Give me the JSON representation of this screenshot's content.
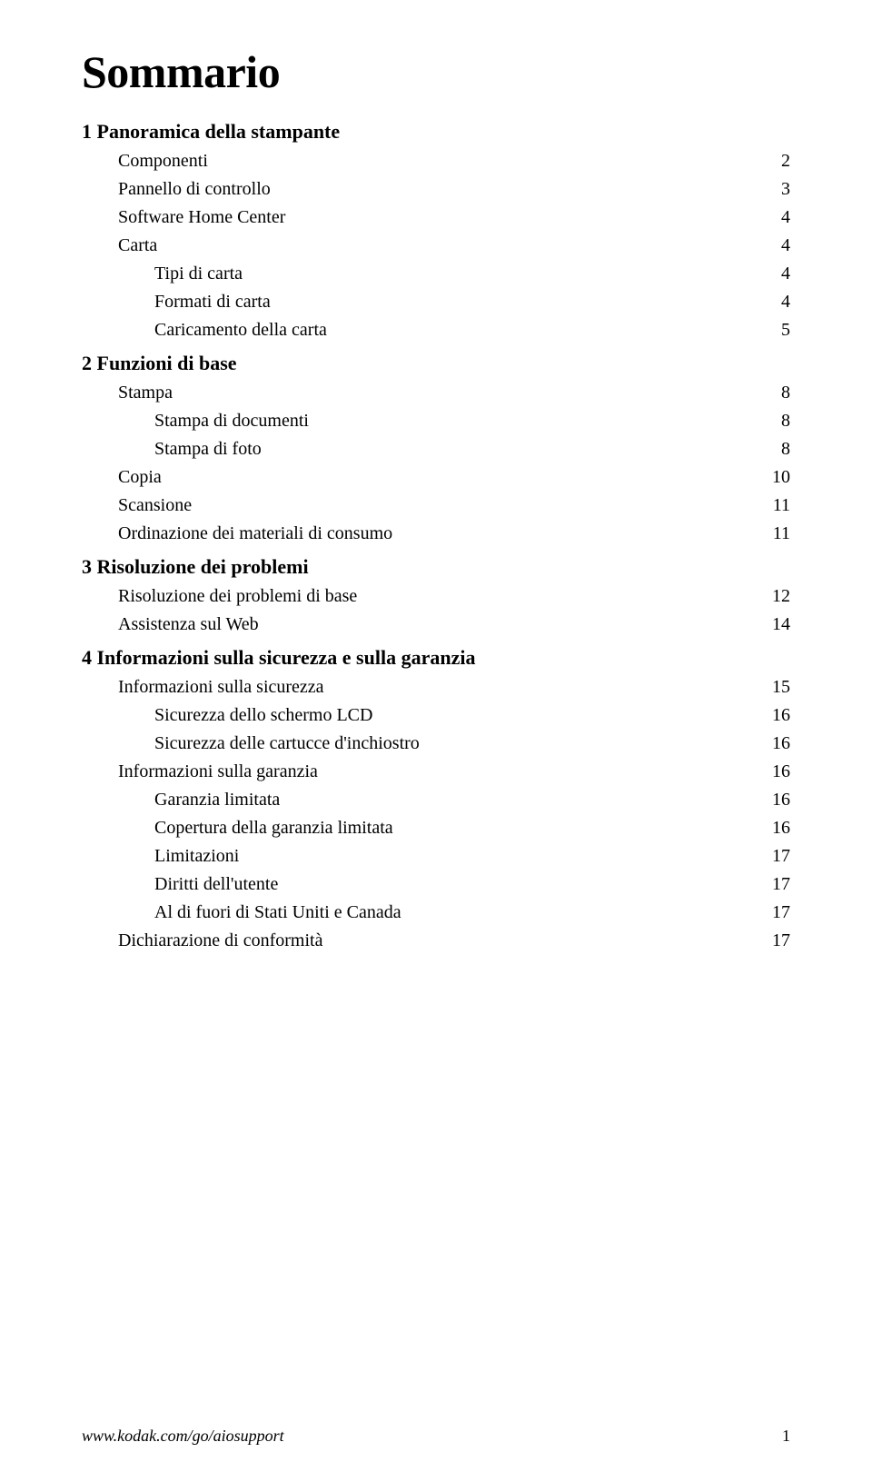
{
  "title": "Sommario",
  "sections": [
    {
      "heading": "1  Panoramica della stampante",
      "entries": [
        {
          "label": "Componenti",
          "page": "2",
          "indent": 1
        },
        {
          "label": "Pannello di controllo",
          "page": "3",
          "indent": 1
        },
        {
          "label": "Software Home Center",
          "page": "4",
          "indent": 1
        },
        {
          "label": "Carta",
          "page": "4",
          "indent": 1
        },
        {
          "label": "Tipi di carta",
          "page": "4",
          "indent": 2
        },
        {
          "label": "Formati di carta",
          "page": "4",
          "indent": 2
        },
        {
          "label": "Caricamento della carta",
          "page": "5",
          "indent": 2
        }
      ]
    },
    {
      "heading": "2  Funzioni di base",
      "entries": [
        {
          "label": "Stampa",
          "page": "8",
          "indent": 1
        },
        {
          "label": "Stampa di documenti",
          "page": "8",
          "indent": 2
        },
        {
          "label": "Stampa di foto",
          "page": "8",
          "indent": 2
        },
        {
          "label": "Copia",
          "page": "10",
          "indent": 1
        },
        {
          "label": "Scansione",
          "page": "11",
          "indent": 1
        },
        {
          "label": "Ordinazione dei materiali di consumo",
          "page": "11",
          "indent": 1
        }
      ]
    },
    {
      "heading": "3  Risoluzione dei problemi",
      "entries": [
        {
          "label": "Risoluzione dei problemi di base",
          "page": "12",
          "indent": 1
        },
        {
          "label": "Assistenza sul Web",
          "page": "14",
          "indent": 1
        }
      ]
    },
    {
      "heading": "4  Informazioni sulla sicurezza e sulla garanzia",
      "entries": [
        {
          "label": "Informazioni sulla sicurezza",
          "page": "15",
          "indent": 1
        },
        {
          "label": "Sicurezza dello schermo LCD",
          "page": "16",
          "indent": 2
        },
        {
          "label": "Sicurezza delle cartucce d'inchiostro",
          "page": "16",
          "indent": 2
        },
        {
          "label": "Informazioni sulla garanzia",
          "page": "16",
          "indent": 1
        },
        {
          "label": "Garanzia limitata",
          "page": "16",
          "indent": 2
        },
        {
          "label": "Copertura della garanzia limitata",
          "page": "16",
          "indent": 2
        },
        {
          "label": "Limitazioni",
          "page": "17",
          "indent": 2
        },
        {
          "label": "Diritti dell'utente",
          "page": "17",
          "indent": 2
        },
        {
          "label": "Al di fuori di Stati Uniti e Canada",
          "page": "17",
          "indent": 2
        },
        {
          "label": "Dichiarazione di conformità",
          "page": "17",
          "indent": 1
        }
      ]
    }
  ],
  "footer": {
    "url": "www.kodak.com/go/aiosupport",
    "page_number": "1"
  }
}
